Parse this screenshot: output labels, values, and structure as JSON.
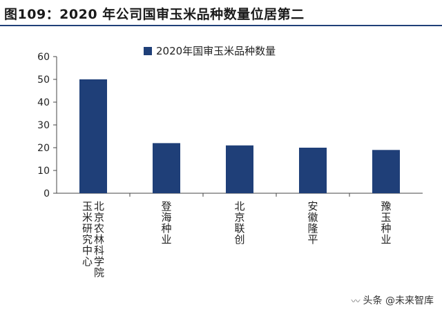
{
  "header": {
    "title": "图109：2020 年公司国审玉米品种数量位居第二"
  },
  "chart_data": {
    "type": "bar",
    "categories": [
      "北京农林科学院玉米研究中心",
      "登海种业",
      "北京联创",
      "安徽隆平",
      "豫玉种业"
    ],
    "series": [
      {
        "name": "2020年国审玉米品种数量",
        "values": [
          50,
          22,
          21,
          20,
          19
        ]
      }
    ],
    "ylim": [
      0,
      60
    ],
    "yticks": [
      0,
      10,
      20,
      30,
      40,
      50,
      60
    ],
    "xlabel": "",
    "ylabel": "",
    "grid": false,
    "legend": "top-center",
    "bar_color": "#1f3f78"
  },
  "watermark": {
    "text": "头条 @未来智库",
    "icon": "weibo-like-icon"
  }
}
